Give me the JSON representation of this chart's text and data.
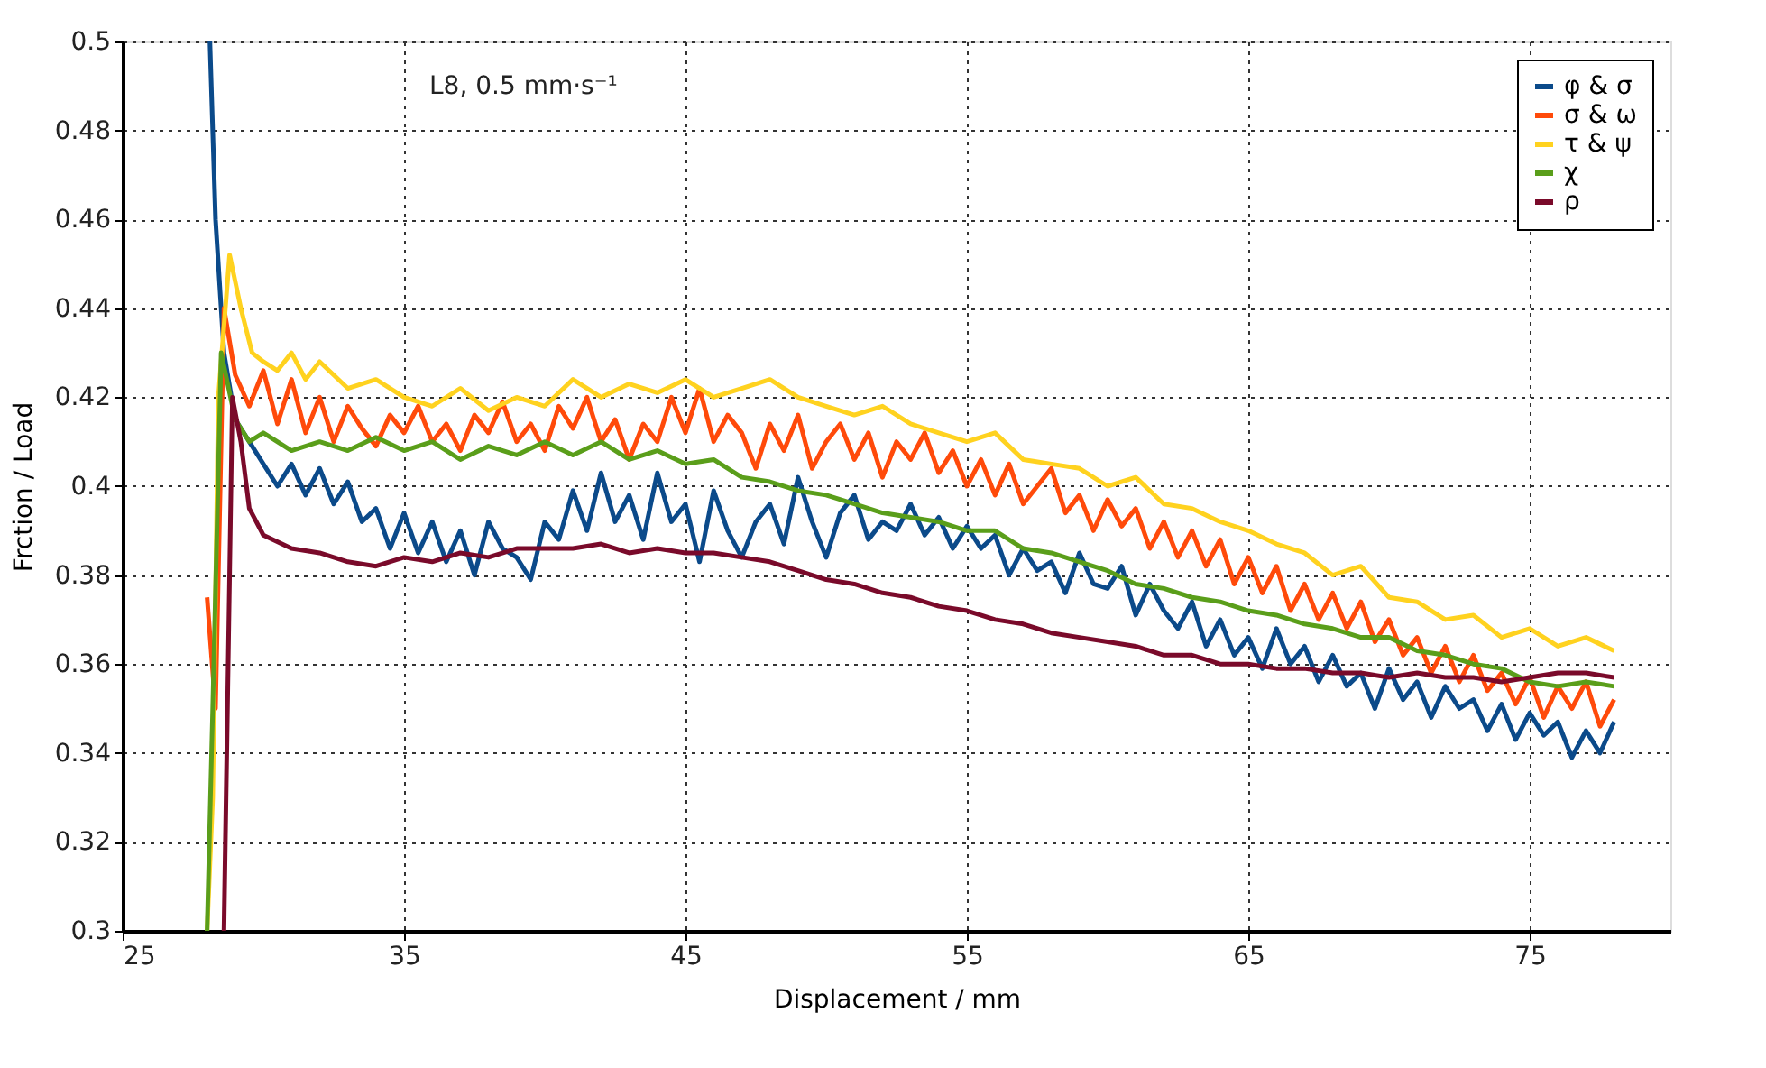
{
  "chart_data": {
    "type": "line",
    "xlabel": "Displacement / mm",
    "ylabel": "Frction / Load",
    "annotations": [
      "L8, 0.5 mm·s⁻¹"
    ],
    "xlim": [
      25,
      80
    ],
    "xticks": [
      25,
      35,
      45,
      55,
      65,
      75
    ],
    "ylim": [
      0.3,
      0.5
    ],
    "yticks": [
      0.3,
      0.32,
      0.34,
      0.36,
      0.38,
      0.4,
      0.42,
      0.44,
      0.46,
      0.48,
      0.5
    ],
    "grid": true,
    "legend": "top right",
    "line_style": "solid",
    "marker": "none",
    "series": [
      {
        "name": "φ & σ",
        "color": "#0b4a8a",
        "x": [
          28.1,
          28.3,
          28.6,
          29,
          29.5,
          30,
          30.5,
          31,
          31.5,
          32,
          32.5,
          33,
          33.5,
          34,
          34.5,
          35,
          35.5,
          36,
          36.5,
          37,
          37.5,
          38,
          38.5,
          39,
          39.5,
          40,
          40.5,
          41,
          41.5,
          42,
          42.5,
          43,
          43.5,
          44,
          44.5,
          45,
          45.5,
          46,
          46.5,
          47,
          47.5,
          48,
          48.5,
          49,
          49.5,
          50,
          50.5,
          51,
          51.5,
          52,
          52.5,
          53,
          53.5,
          54,
          54.5,
          55,
          55.5,
          56,
          56.5,
          57,
          57.5,
          58,
          58.5,
          59,
          59.5,
          60,
          60.5,
          61,
          61.5,
          62,
          62.5,
          63,
          63.5,
          64,
          64.5,
          65,
          65.5,
          66,
          66.5,
          67,
          67.5,
          68,
          68.5,
          69,
          69.5,
          70,
          70.5,
          71,
          71.5,
          72,
          72.5,
          73,
          73.5,
          74,
          74.5,
          75,
          75.5,
          76,
          76.5,
          77,
          77.5,
          78
        ],
        "values": [
          0.5,
          0.46,
          0.43,
          0.415,
          0.41,
          0.405,
          0.4,
          0.405,
          0.398,
          0.404,
          0.396,
          0.401,
          0.392,
          0.395,
          0.386,
          0.394,
          0.385,
          0.392,
          0.383,
          0.39,
          0.38,
          0.392,
          0.386,
          0.384,
          0.379,
          0.392,
          0.388,
          0.399,
          0.39,
          0.403,
          0.392,
          0.398,
          0.388,
          0.403,
          0.392,
          0.396,
          0.383,
          0.399,
          0.39,
          0.384,
          0.392,
          0.396,
          0.387,
          0.402,
          0.392,
          0.384,
          0.394,
          0.398,
          0.388,
          0.392,
          0.39,
          0.396,
          0.389,
          0.393,
          0.386,
          0.391,
          0.386,
          0.389,
          0.38,
          0.386,
          0.381,
          0.383,
          0.376,
          0.385,
          0.378,
          0.377,
          0.382,
          0.371,
          0.378,
          0.372,
          0.368,
          0.374,
          0.364,
          0.37,
          0.362,
          0.366,
          0.359,
          0.368,
          0.36,
          0.364,
          0.356,
          0.362,
          0.355,
          0.358,
          0.35,
          0.359,
          0.352,
          0.356,
          0.348,
          0.355,
          0.35,
          0.352,
          0.345,
          0.351,
          0.343,
          0.349,
          0.344,
          0.347,
          0.339,
          0.345,
          0.34,
          0.347
        ]
      },
      {
        "name": "σ & ω",
        "color": "#ff4a0a",
        "x": [
          28.0,
          28.3,
          28.6,
          29,
          29.5,
          30,
          30.5,
          31,
          31.5,
          32,
          32.5,
          33,
          33.5,
          34,
          34.5,
          35,
          35.5,
          36,
          36.5,
          37,
          37.5,
          38,
          38.5,
          39,
          39.5,
          40,
          40.5,
          41,
          41.5,
          42,
          42.5,
          43,
          43.5,
          44,
          44.5,
          45,
          45.5,
          46,
          46.5,
          47,
          47.5,
          48,
          48.5,
          49,
          49.5,
          50,
          50.5,
          51,
          51.5,
          52,
          52.5,
          53,
          53.5,
          54,
          54.5,
          55,
          55.5,
          56,
          56.5,
          57,
          57.5,
          58,
          58.5,
          59,
          59.5,
          60,
          60.5,
          61,
          61.5,
          62,
          62.5,
          63,
          63.5,
          64,
          64.5,
          65,
          65.5,
          66,
          66.5,
          67,
          67.5,
          68,
          68.5,
          69,
          69.5,
          70,
          70.5,
          71,
          71.5,
          72,
          72.5,
          73,
          73.5,
          74,
          74.5,
          75,
          75.5,
          76,
          76.5,
          77,
          77.5,
          78
        ],
        "values": [
          0.375,
          0.35,
          0.44,
          0.425,
          0.418,
          0.426,
          0.414,
          0.424,
          0.412,
          0.42,
          0.41,
          0.418,
          0.413,
          0.409,
          0.416,
          0.412,
          0.418,
          0.41,
          0.414,
          0.408,
          0.416,
          0.412,
          0.419,
          0.41,
          0.414,
          0.408,
          0.418,
          0.413,
          0.42,
          0.41,
          0.415,
          0.406,
          0.414,
          0.41,
          0.42,
          0.412,
          0.422,
          0.41,
          0.416,
          0.412,
          0.404,
          0.414,
          0.408,
          0.416,
          0.404,
          0.41,
          0.414,
          0.406,
          0.412,
          0.402,
          0.41,
          0.406,
          0.412,
          0.403,
          0.408,
          0.4,
          0.406,
          0.398,
          0.405,
          0.396,
          0.4,
          0.404,
          0.394,
          0.398,
          0.39,
          0.397,
          0.391,
          0.395,
          0.386,
          0.392,
          0.384,
          0.39,
          0.382,
          0.388,
          0.378,
          0.384,
          0.376,
          0.382,
          0.372,
          0.378,
          0.37,
          0.376,
          0.368,
          0.374,
          0.365,
          0.37,
          0.362,
          0.366,
          0.358,
          0.364,
          0.356,
          0.362,
          0.354,
          0.358,
          0.351,
          0.357,
          0.348,
          0.355,
          0.35,
          0.356,
          0.346,
          0.352
        ]
      },
      {
        "name": "τ & ψ",
        "color": "#ffd21f",
        "x": [
          28.0,
          28.2,
          28.4,
          28.8,
          29.2,
          29.6,
          30,
          30.5,
          31,
          31.5,
          32,
          33,
          34,
          35,
          36,
          37,
          38,
          39,
          40,
          41,
          42,
          43,
          44,
          45,
          46,
          47,
          48,
          49,
          50,
          51,
          52,
          53,
          54,
          55,
          56,
          57,
          58,
          59,
          60,
          61,
          62,
          63,
          64,
          65,
          66,
          67,
          68,
          69,
          70,
          71,
          72,
          73,
          74,
          75,
          76,
          77,
          78
        ],
        "values": [
          0.3,
          0.33,
          0.42,
          0.452,
          0.44,
          0.43,
          0.428,
          0.426,
          0.43,
          0.424,
          0.428,
          0.422,
          0.424,
          0.42,
          0.418,
          0.422,
          0.417,
          0.42,
          0.418,
          0.424,
          0.42,
          0.423,
          0.421,
          0.424,
          0.42,
          0.422,
          0.424,
          0.42,
          0.418,
          0.416,
          0.418,
          0.414,
          0.412,
          0.41,
          0.412,
          0.406,
          0.405,
          0.404,
          0.4,
          0.402,
          0.396,
          0.395,
          0.392,
          0.39,
          0.387,
          0.385,
          0.38,
          0.382,
          0.375,
          0.374,
          0.37,
          0.371,
          0.366,
          0.368,
          0.364,
          0.366,
          0.363
        ]
      },
      {
        "name": "χ",
        "color": "#5a9e1a",
        "x": [
          28.0,
          28.2,
          28.5,
          29,
          29.5,
          30,
          31,
          32,
          33,
          34,
          35,
          36,
          37,
          38,
          39,
          40,
          41,
          42,
          43,
          44,
          45,
          46,
          47,
          48,
          49,
          50,
          51,
          52,
          53,
          54,
          55,
          56,
          57,
          58,
          59,
          60,
          61,
          62,
          63,
          64,
          65,
          66,
          67,
          68,
          69,
          70,
          71,
          72,
          73,
          74,
          75,
          76,
          77,
          78
        ],
        "values": [
          0.3,
          0.35,
          0.43,
          0.415,
          0.41,
          0.412,
          0.408,
          0.41,
          0.408,
          0.411,
          0.408,
          0.41,
          0.406,
          0.409,
          0.407,
          0.41,
          0.407,
          0.41,
          0.406,
          0.408,
          0.405,
          0.406,
          0.402,
          0.401,
          0.399,
          0.398,
          0.396,
          0.394,
          0.393,
          0.392,
          0.39,
          0.39,
          0.386,
          0.385,
          0.383,
          0.381,
          0.378,
          0.377,
          0.375,
          0.374,
          0.372,
          0.371,
          0.369,
          0.368,
          0.366,
          0.366,
          0.363,
          0.362,
          0.36,
          0.359,
          0.356,
          0.355,
          0.356,
          0.355
        ]
      },
      {
        "name": "ρ",
        "color": "#7a0a2a",
        "x": [
          28.6,
          28.9,
          29.2,
          29.5,
          30,
          31,
          32,
          33,
          34,
          35,
          36,
          37,
          38,
          39,
          40,
          41,
          42,
          43,
          44,
          45,
          46,
          47,
          48,
          49,
          50,
          51,
          52,
          53,
          54,
          55,
          56,
          57,
          58,
          59,
          60,
          61,
          62,
          63,
          64,
          65,
          66,
          67,
          68,
          69,
          70,
          71,
          72,
          73,
          74,
          75,
          76,
          77,
          78
        ],
        "values": [
          0.3,
          0.42,
          0.41,
          0.395,
          0.389,
          0.386,
          0.385,
          0.383,
          0.382,
          0.384,
          0.383,
          0.385,
          0.384,
          0.386,
          0.386,
          0.386,
          0.387,
          0.385,
          0.386,
          0.385,
          0.385,
          0.384,
          0.383,
          0.381,
          0.379,
          0.378,
          0.376,
          0.375,
          0.373,
          0.372,
          0.37,
          0.369,
          0.367,
          0.366,
          0.365,
          0.364,
          0.362,
          0.362,
          0.36,
          0.36,
          0.359,
          0.359,
          0.358,
          0.358,
          0.357,
          0.358,
          0.357,
          0.357,
          0.356,
          0.357,
          0.358,
          0.358,
          0.357
        ]
      }
    ]
  }
}
